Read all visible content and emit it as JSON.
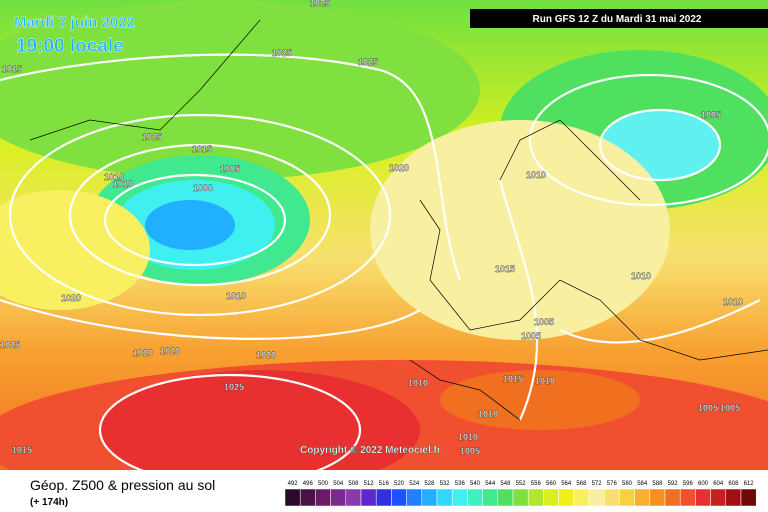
{
  "header": {
    "date": "Mardi 7 juin 2022",
    "time": "19:00 locale",
    "run": "Run GFS 12 Z du Mardi 31 mai 2022"
  },
  "copyright": "Copyright © 2022 Meteociel.fr",
  "isobars": {
    "labels": [
      1025,
      1015,
      1025,
      1025,
      1025,
      1015,
      1005,
      1010,
      1010,
      1000,
      1020,
      1010,
      1005,
      1015,
      1010,
      1010,
      1020,
      1010,
      1005,
      1005,
      1025,
      1020,
      1020,
      1020,
      1025,
      1010,
      1015,
      1010,
      1010,
      1010,
      1005,
      1015,
      1005,
      1005
    ]
  },
  "legend": {
    "title": "Géop. Z500 & pression au sol",
    "lead": "(+ 174h)",
    "scale": [
      492,
      496,
      500,
      504,
      508,
      512,
      516,
      520,
      524,
      528,
      532,
      536,
      540,
      544,
      548,
      552,
      556,
      560,
      564,
      568,
      572,
      576,
      580,
      584,
      588,
      592,
      596,
      600,
      604,
      608,
      612
    ],
    "colors": [
      "#2a0a2a",
      "#4a1048",
      "#6a1a68",
      "#7a2a8a",
      "#8a3aaa",
      "#5a2acc",
      "#3030e0",
      "#2050ff",
      "#2080ff",
      "#20b0ff",
      "#30d8ff",
      "#40f0f0",
      "#40f0c0",
      "#40e890",
      "#50e060",
      "#80e040",
      "#b0e830",
      "#d8f020",
      "#f0f020",
      "#f8f060",
      "#f8f0a0",
      "#f8e070",
      "#f8d040",
      "#f8b030",
      "#f89020",
      "#f07020",
      "#f05030",
      "#e83030",
      "#c82020",
      "#a01010",
      "#700808"
    ]
  }
}
